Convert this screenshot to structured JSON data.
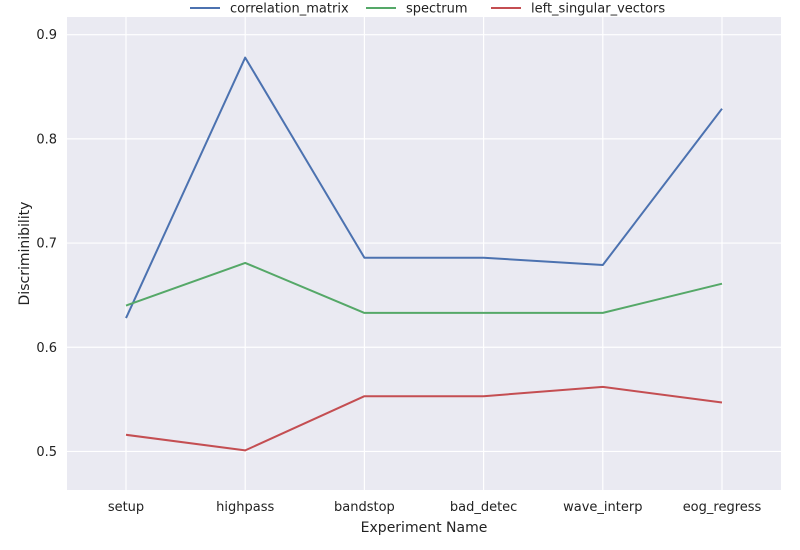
{
  "chart_data": {
    "type": "line",
    "title": "",
    "xlabel": "Experiment Name",
    "ylabel": "Discriminibility",
    "categories": [
      "setup",
      "highpass",
      "bandstop",
      "bad_detec",
      "wave_interp",
      "eog_regress"
    ],
    "ylim": [
      0.463,
      0.917
    ],
    "yticks": [
      0.5,
      0.6,
      0.7,
      0.8,
      0.9
    ],
    "ytick_labels": [
      "0.5",
      "0.6",
      "0.7",
      "0.8",
      "0.9"
    ],
    "grid": true,
    "legend_position": "top-center",
    "series": [
      {
        "name": "correlation_matrix",
        "color": "#4C72B0",
        "values": [
          0.628,
          0.878,
          0.686,
          0.686,
          0.679,
          0.829
        ]
      },
      {
        "name": "spectrum",
        "color": "#55A868",
        "values": [
          0.64,
          0.681,
          0.633,
          0.633,
          0.633,
          0.661
        ]
      },
      {
        "name": "left_singular_vectors",
        "color": "#C44E52",
        "values": [
          0.516,
          0.501,
          0.553,
          0.553,
          0.562,
          0.547
        ]
      }
    ],
    "plot_background": "#EAEAF2",
    "grid_color": "#FFFFFF"
  }
}
